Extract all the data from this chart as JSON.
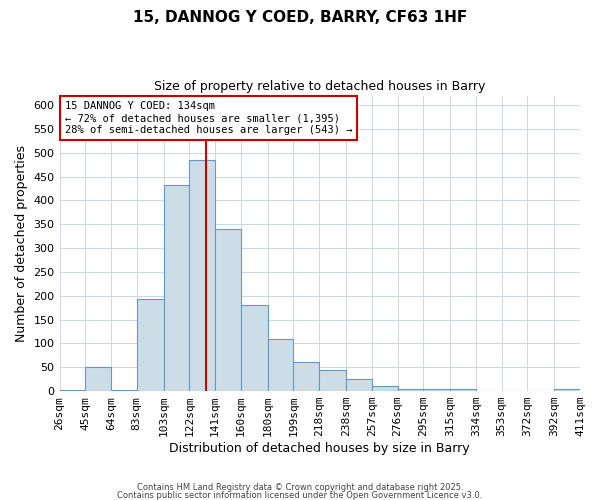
{
  "title": "15, DANNOG Y COED, BARRY, CF63 1HF",
  "subtitle": "Size of property relative to detached houses in Barry",
  "xlabel": "Distribution of detached houses by size in Barry",
  "ylabel": "Number of detached properties",
  "bins": [
    26,
    45,
    64,
    83,
    103,
    122,
    141,
    160,
    180,
    199,
    218,
    238,
    257,
    276,
    295,
    315,
    334,
    353,
    372,
    392,
    411
  ],
  "bin_labels": [
    "26sqm",
    "45sqm",
    "64sqm",
    "83sqm",
    "103sqm",
    "122sqm",
    "141sqm",
    "160sqm",
    "180sqm",
    "199sqm",
    "218sqm",
    "238sqm",
    "257sqm",
    "276sqm",
    "295sqm",
    "315sqm",
    "334sqm",
    "353sqm",
    "372sqm",
    "392sqm",
    "411sqm"
  ],
  "values": [
    2,
    50,
    2,
    193,
    432,
    484,
    340,
    180,
    110,
    62,
    45,
    25,
    10,
    5,
    5,
    5,
    0,
    0,
    0,
    5
  ],
  "bar_color": "#ccdde8",
  "bar_edge_color": "#6699bb",
  "vline_x": 134,
  "vline_color": "#cc0000",
  "ylim": [
    0,
    620
  ],
  "yticks": [
    0,
    50,
    100,
    150,
    200,
    250,
    300,
    350,
    400,
    450,
    500,
    550,
    600
  ],
  "annotation_line1": "15 DANNOG Y COED: 134sqm",
  "annotation_line2": "← 72% of detached houses are smaller (1,395)",
  "annotation_line3": "28% of semi-detached houses are larger (543) →",
  "annotation_box_color": "#ffffff",
  "annotation_box_edge": "#cc0000",
  "footer1": "Contains HM Land Registry data © Crown copyright and database right 2025.",
  "footer2": "Contains public sector information licensed under the Open Government Licence v3.0.",
  "background_color": "#ffffff",
  "grid_color": "#c8d8e8"
}
